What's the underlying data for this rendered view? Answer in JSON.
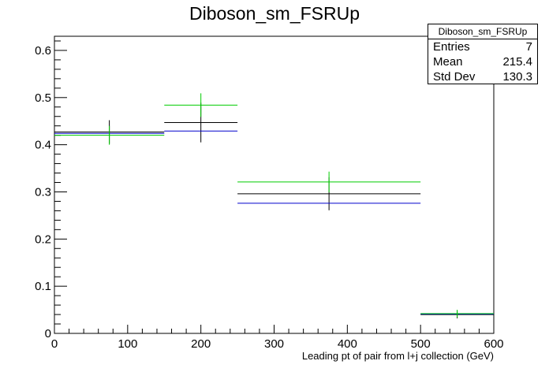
{
  "chart_data": {
    "type": "histogram",
    "title": "Diboson_sm_FSRUp",
    "xlabel": "Leading pt of pair from l+j collection (GeV)",
    "ylabel": "",
    "xlim": [
      0,
      600
    ],
    "ylim": [
      0,
      0.63
    ],
    "x_ticks": [
      0,
      100,
      200,
      300,
      400,
      500,
      600
    ],
    "y_ticks": [
      0,
      0.1,
      0.2,
      0.3,
      0.4,
      0.5,
      0.6
    ],
    "bin_edges": [
      0,
      150,
      250,
      500,
      600
    ],
    "series": [
      {
        "color": "#000000",
        "values": [
          0.427,
          0.447,
          0.296,
          0.04
        ],
        "errors": [
          0.025,
          0.042,
          0.035,
          0.008
        ]
      },
      {
        "color": "#0000cc",
        "values": [
          0.424,
          0.429,
          0.276,
          0.041
        ],
        "errors": [
          0,
          0,
          0,
          0
        ]
      },
      {
        "color": "#00cc00",
        "values": [
          0.42,
          0.484,
          0.321,
          0.042
        ],
        "errors": [
          0.02,
          0.025,
          0.022,
          0.008
        ]
      }
    ]
  },
  "stats": {
    "name": "Diboson_sm_FSRUp",
    "entries_label": "Entries",
    "entries": "7",
    "mean_label": "Mean",
    "mean": "215.4",
    "stddev_label": "Std Dev",
    "stddev": "130.3"
  }
}
